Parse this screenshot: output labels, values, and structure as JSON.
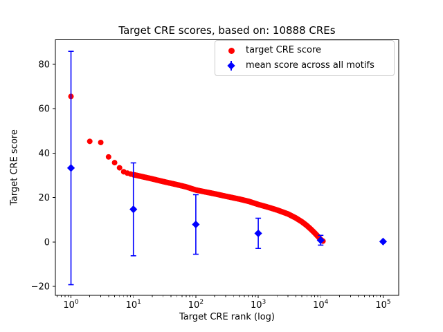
{
  "chart_data": {
    "type": "scatter",
    "title": "Target CRE scores, based on: 10888 CREs",
    "xlabel": "Target CRE rank (log)",
    "ylabel": "Target CRE score",
    "x_scale": "log",
    "xlim_log10": [
      -0.25,
      5.25
    ],
    "ylim": [
      -24,
      91
    ],
    "y_ticks": [
      -20,
      0,
      20,
      40,
      60,
      80
    ],
    "x_tick_exponents": [
      0,
      1,
      2,
      3,
      4,
      5
    ],
    "grid": false,
    "legend_position": "upper right",
    "colors": {
      "target": "#ff0000",
      "mean": "#0000ff",
      "axes": "#000000",
      "legend_border": "#cccccc"
    },
    "legend_items": [
      {
        "label": "target CRE score",
        "marker": "circle",
        "color": "#ff0000"
      },
      {
        "label": "mean score across all motifs",
        "marker": "diamond-errorbar",
        "color": "#0000ff"
      }
    ],
    "series": [
      {
        "name": "target CRE score",
        "type": "scatter-band",
        "color": "#ff0000",
        "marker": "circle",
        "keypoints": [
          [
            1,
            65.5
          ],
          [
            2,
            45.3
          ],
          [
            3,
            44.8
          ],
          [
            4,
            38.3
          ],
          [
            5,
            35.7
          ],
          [
            6,
            33.4
          ],
          [
            7,
            31.6
          ],
          [
            8,
            31.0
          ],
          [
            9,
            30.6
          ],
          [
            10,
            30.3
          ],
          [
            15,
            29.2
          ],
          [
            20,
            28.4
          ],
          [
            30,
            27.2
          ],
          [
            50,
            25.8
          ],
          [
            70,
            24.8
          ],
          [
            100,
            23.4
          ],
          [
            150,
            22.4
          ],
          [
            200,
            21.7
          ],
          [
            300,
            20.6
          ],
          [
            500,
            19.3
          ],
          [
            700,
            18.3
          ],
          [
            1000,
            16.9
          ],
          [
            1500,
            15.5
          ],
          [
            2000,
            14.4
          ],
          [
            3000,
            12.6
          ],
          [
            4000,
            10.8
          ],
          [
            5000,
            9.1
          ],
          [
            6000,
            7.4
          ],
          [
            7000,
            5.7
          ],
          [
            8000,
            4.1
          ],
          [
            9000,
            2.6
          ],
          [
            10000,
            1.1
          ],
          [
            10400,
            0.7
          ],
          [
            10888,
            0.4
          ]
        ]
      },
      {
        "name": "mean score across all motifs",
        "type": "errorbar",
        "color": "#0000ff",
        "marker": "diamond",
        "points": [
          {
            "x": 1,
            "y": 33.3,
            "err": 52.5
          },
          {
            "x": 10,
            "y": 14.7,
            "err": 20.9
          },
          {
            "x": 100,
            "y": 7.9,
            "err": 13.4
          },
          {
            "x": 1000,
            "y": 3.9,
            "err": 6.8
          },
          {
            "x": 10000,
            "y": 0.8,
            "err": 2.2
          },
          {
            "x": 100000,
            "y": 0.2,
            "err": 0
          }
        ]
      }
    ]
  }
}
